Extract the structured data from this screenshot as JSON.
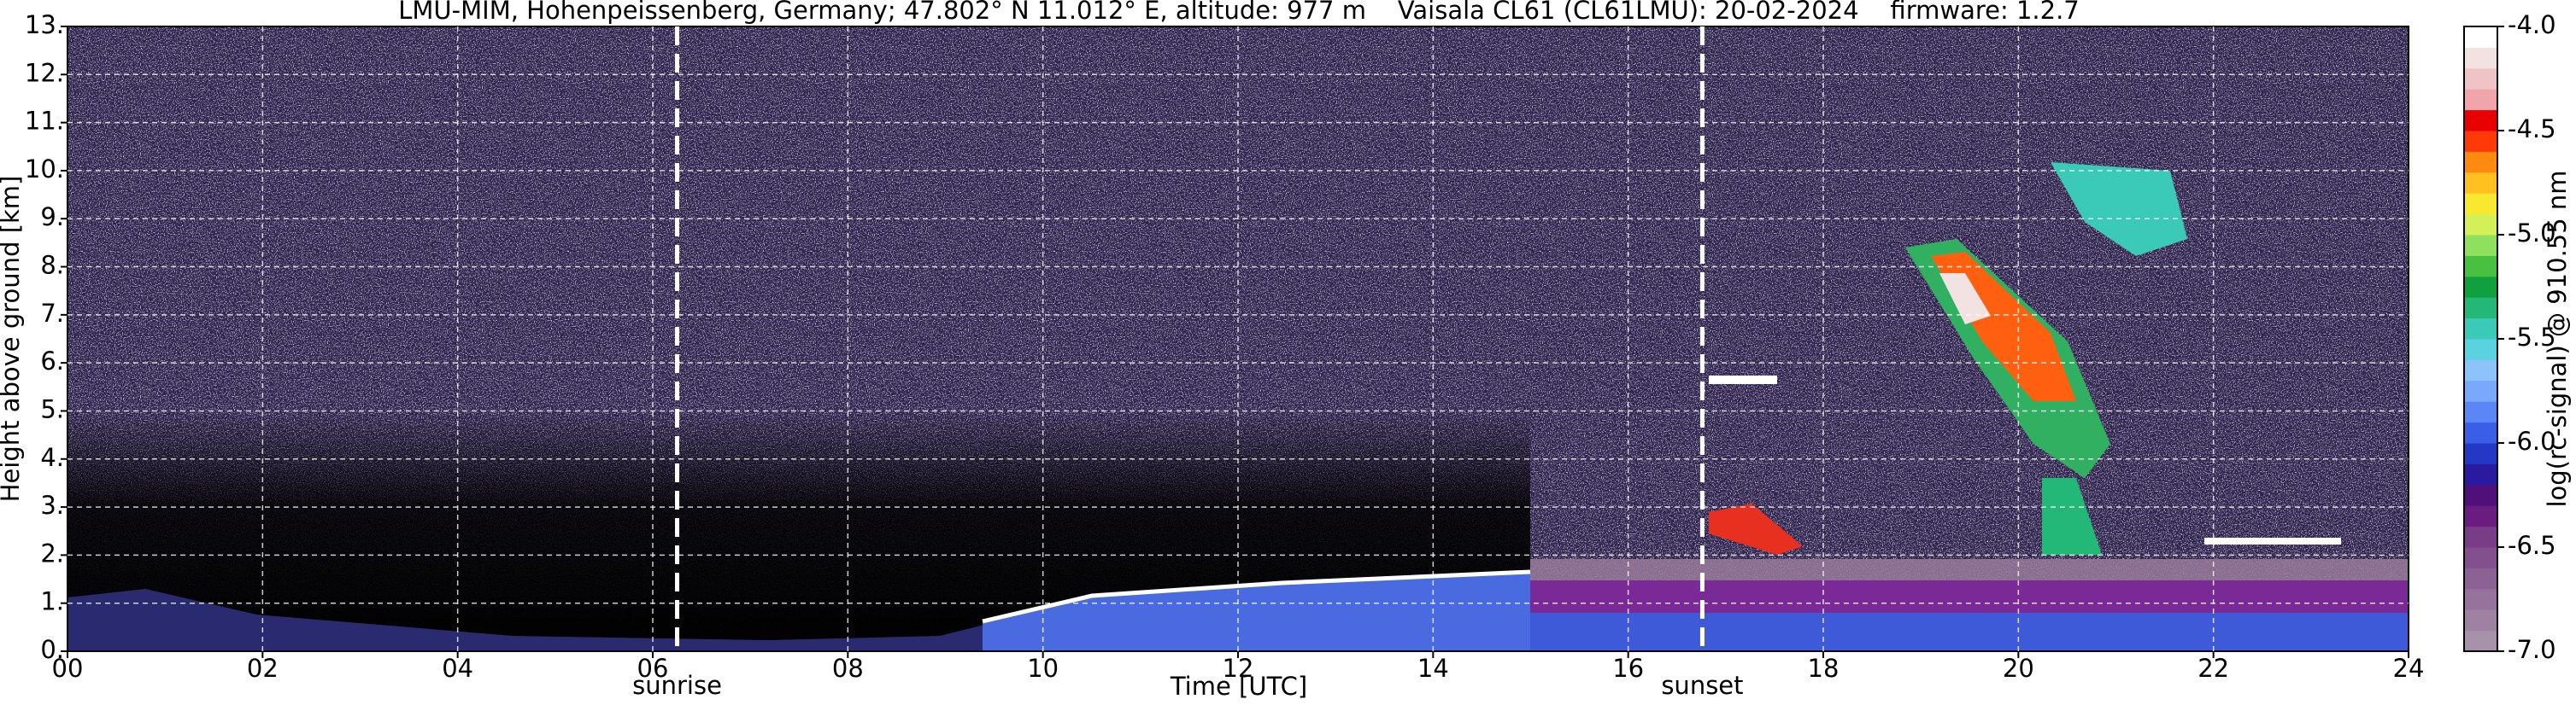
{
  "chart_data": {
    "type": "heatmap",
    "title": "LMU-MIM, Hohenpeissenberg, Germany; 47.802° N 11.012° E, altitude: 977 m    Vaisala CL61 (CL61LMU): 20-02-2024    firmware: 1.2.7",
    "x_label": "Time [UTC]",
    "y_label": "Height above ground [km]",
    "colorbar_label": "log(rc-signal) @ 910.55 nm",
    "xlim": [
      0,
      24
    ],
    "xticks": [
      {
        "value": 0,
        "label": "00"
      },
      {
        "value": 2,
        "label": "02"
      },
      {
        "value": 4,
        "label": "04"
      },
      {
        "value": 6,
        "label": "06"
      },
      {
        "value": 8,
        "label": "08"
      },
      {
        "value": 10,
        "label": "10"
      },
      {
        "value": 12,
        "label": "12"
      },
      {
        "value": 14,
        "label": "14"
      },
      {
        "value": 16,
        "label": "16"
      },
      {
        "value": 18,
        "label": "18"
      },
      {
        "value": 20,
        "label": "20"
      },
      {
        "value": 22,
        "label": "22"
      },
      {
        "value": 24,
        "label": "24"
      }
    ],
    "ylim": [
      0,
      13
    ],
    "yticks": [
      {
        "value": 0,
        "label": "0."
      },
      {
        "value": 1,
        "label": "1."
      },
      {
        "value": 2,
        "label": "2."
      },
      {
        "value": 3,
        "label": "3."
      },
      {
        "value": 4,
        "label": "4."
      },
      {
        "value": 5,
        "label": "5."
      },
      {
        "value": 6,
        "label": "6."
      },
      {
        "value": 7,
        "label": "7."
      },
      {
        "value": 8,
        "label": "8."
      },
      {
        "value": 9,
        "label": "9."
      },
      {
        "value": 10,
        "label": "10."
      },
      {
        "value": 11,
        "label": "11."
      },
      {
        "value": 12,
        "label": "12."
      },
      {
        "value": 13,
        "label": "13."
      }
    ],
    "grid": true,
    "annotations": [
      {
        "label": "sunrise",
        "x": 6.25
      },
      {
        "label": "sunset",
        "x": 16.76
      }
    ],
    "clim": [
      -7.0,
      -4.0
    ],
    "cticks": [
      {
        "value": -7.0,
        "label": "-7.0"
      },
      {
        "value": -6.5,
        "label": "-6.5"
      },
      {
        "value": -6.0,
        "label": "-6.0"
      },
      {
        "value": -5.5,
        "label": "-5.5"
      },
      {
        "value": -5.0,
        "label": "-5.0"
      },
      {
        "value": -4.5,
        "label": "-4.5"
      },
      {
        "value": -4.0,
        "label": "-4.0"
      }
    ],
    "colorbar_colors": [
      "#a891aa",
      "#9f82a3",
      "#96739c",
      "#8c6294",
      "#82508c",
      "#793c86",
      "#6a1c80",
      "#50107a",
      "#2a1aa0",
      "#2438c8",
      "#3a5ee8",
      "#5a86f6",
      "#7aa8fc",
      "#8cc4fa",
      "#5ad2e0",
      "#3ccab8",
      "#24b878",
      "#10a040",
      "#48c040",
      "#90e060",
      "#d4f058",
      "#f8e830",
      "#ffc020",
      "#ff8a10",
      "#ff3a08",
      "#e80000",
      "#f0a4ac",
      "#f0c4c6",
      "#f2e2e2",
      "#ffffff"
    ]
  }
}
